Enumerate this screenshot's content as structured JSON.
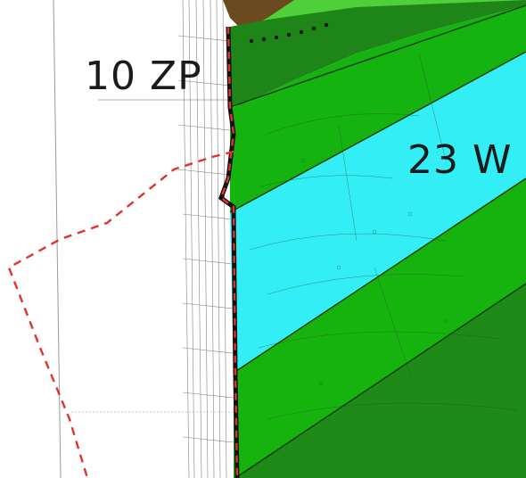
{
  "zones": {
    "zp_label": "10 ZP",
    "w_label": "23 W"
  },
  "colors": {
    "background": "#ffffff",
    "green_bright": "#12b80e",
    "green_dark": "#1f8a1a",
    "green_mid": "#2ea31f",
    "water_cyan": "#33eef5",
    "boundary_red": "#e2322a",
    "boundary_black": "#111111",
    "ground_brown": "#6b4a1f"
  },
  "icons": {
    "boundary_dashed": "red-dashed-boundary",
    "plot_boundary": "black-thick-boundary"
  }
}
